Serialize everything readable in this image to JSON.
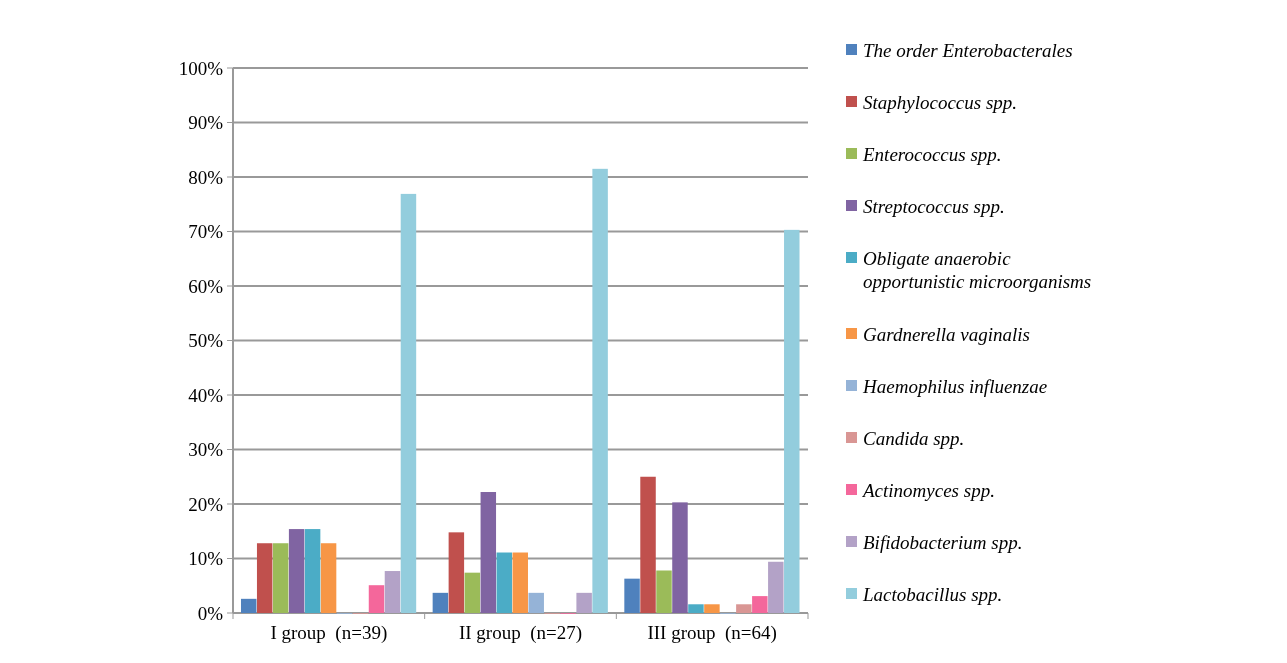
{
  "chart_data": {
    "type": "bar",
    "categories": [
      "I group  (n=39)",
      "II group  (n=27)",
      "III group  (n=64)"
    ],
    "series": [
      {
        "name": "The order Enterobacterales",
        "color": "#4f81bd",
        "values": [
          2.6,
          3.7,
          6.3
        ]
      },
      {
        "name": "Staphylococcus spp.",
        "color": "#c0504d",
        "values": [
          12.8,
          14.8,
          25.0
        ]
      },
      {
        "name": "Enterococcus spp.",
        "color": "#9bbb59",
        "values": [
          12.8,
          7.4,
          7.8
        ]
      },
      {
        "name": "Streptococcus spp.",
        "color": "#8064a2",
        "values": [
          15.4,
          22.2,
          20.3
        ]
      },
      {
        "name": "Obligate anaerobic opportunistic microorganisms",
        "color": "#4bacc6",
        "values": [
          15.4,
          11.1,
          1.6
        ]
      },
      {
        "name": "Gardnerella vaginalis",
        "color": "#f79646",
        "values": [
          12.8,
          11.1,
          1.6
        ]
      },
      {
        "name": "Haemophilus influenzae",
        "color": "#95b3d7",
        "values": [
          0,
          3.7,
          0
        ]
      },
      {
        "name": "Candida spp.",
        "color": "#d99694",
        "values": [
          0,
          0,
          1.6
        ]
      },
      {
        "name": "Actinomyces spp.",
        "color": "#f4679b",
        "values": [
          5.1,
          0,
          3.1
        ]
      },
      {
        "name": "Bifidobacterium spp.",
        "color": "#b3a2c7",
        "values": [
          7.7,
          3.7,
          9.4
        ]
      },
      {
        "name": "Lactobacillus spp.",
        "color": "#93cddd",
        "values": [
          76.9,
          81.5,
          70.3
        ]
      }
    ],
    "ylim": [
      0,
      100
    ],
    "yticks": [
      {
        "value": 0,
        "label": "0%"
      },
      {
        "value": 10,
        "label": "10%"
      },
      {
        "value": 20,
        "label": "20%"
      },
      {
        "value": 30,
        "label": "30%"
      },
      {
        "value": 40,
        "label": "40%"
      },
      {
        "value": 50,
        "label": "50%"
      },
      {
        "value": 60,
        "label": "60%"
      },
      {
        "value": 70,
        "label": "70%"
      },
      {
        "value": 80,
        "label": "80%"
      },
      {
        "value": 90,
        "label": "90%"
      },
      {
        "value": 100,
        "label": "100%"
      }
    ],
    "grid": "y",
    "legend": "right"
  }
}
